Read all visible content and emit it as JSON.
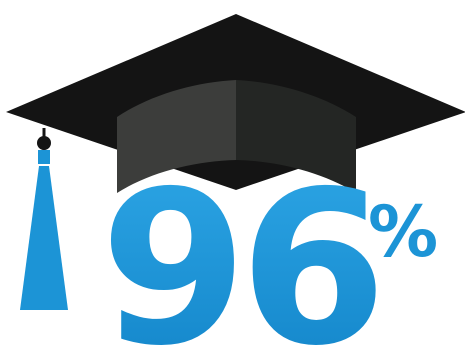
{
  "stat": {
    "value": "96",
    "unit": "%"
  },
  "illustration": {
    "icon": "graduation-cap-icon",
    "tassel_icon": "tassel-icon"
  },
  "colors": {
    "cap_board": "#141414",
    "cap_band_left": "#3c3d3b",
    "cap_band_right": "#242624",
    "tassel": "#1c94d6",
    "text": "#1c94d6"
  }
}
